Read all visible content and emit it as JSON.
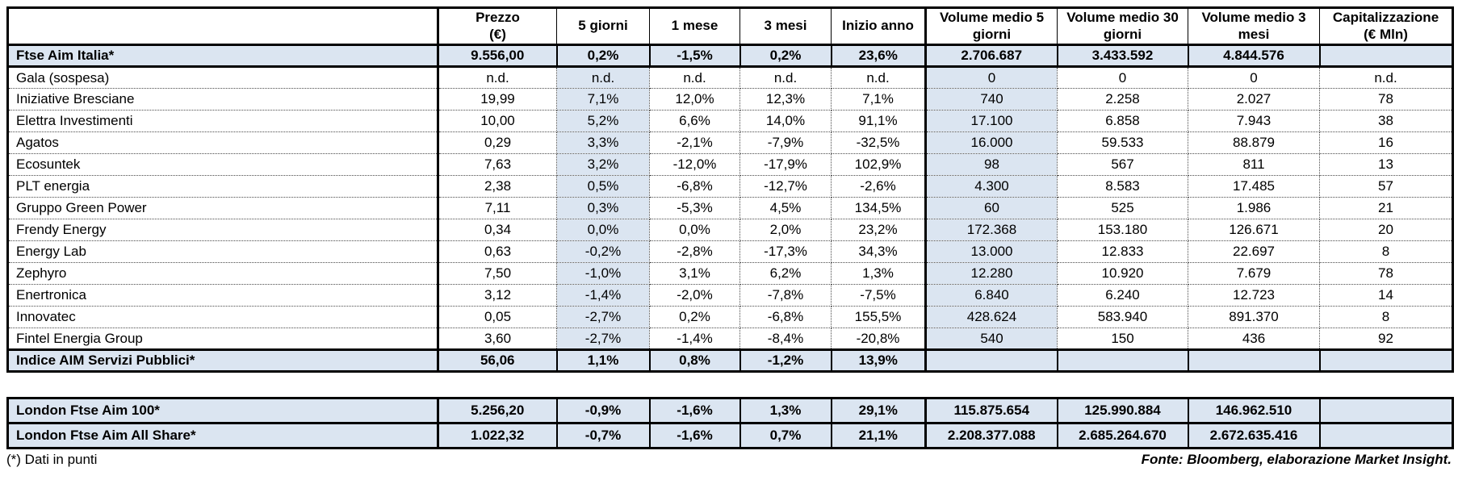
{
  "colors": {
    "highlight_blue": "#dbe5f1",
    "border_black": "#000000",
    "background": "#ffffff"
  },
  "chart_data": {
    "type": "table",
    "columns": [
      "",
      "Prezzo\n(€)",
      "5 giorni",
      "1 mese",
      "3 mesi",
      "Inizio anno",
      "Volume medio 5\ngiorni",
      "Volume medio 30\ngiorni",
      "Volume medio 3\nmesi",
      "Capitalizzazione\n(€ Mln)"
    ],
    "main_rows": [
      {
        "label": "Ftse Aim Italia*",
        "style": "index",
        "values": [
          "9.556,00",
          "0,2%",
          "-1,5%",
          "0,2%",
          "23,6%",
          "2.706.687",
          "3.433.592",
          "4.844.576",
          ""
        ]
      },
      {
        "label": "Gala (sospesa)",
        "style": "stock",
        "values": [
          "n.d.",
          "n.d.",
          "n.d.",
          "n.d.",
          "n.d.",
          "0",
          "0",
          "0",
          "n.d."
        ]
      },
      {
        "label": "Iniziative Bresciane",
        "style": "stock",
        "values": [
          "19,99",
          "7,1%",
          "12,0%",
          "12,3%",
          "7,1%",
          "740",
          "2.258",
          "2.027",
          "78"
        ]
      },
      {
        "label": "Elettra Investimenti",
        "style": "stock",
        "values": [
          "10,00",
          "5,2%",
          "6,6%",
          "14,0%",
          "91,1%",
          "17.100",
          "6.858",
          "7.943",
          "38"
        ]
      },
      {
        "label": "Agatos",
        "style": "stock",
        "values": [
          "0,29",
          "3,3%",
          "-2,1%",
          "-7,9%",
          "-32,5%",
          "16.000",
          "59.533",
          "88.879",
          "16"
        ]
      },
      {
        "label": "Ecosuntek",
        "style": "stock",
        "values": [
          "7,63",
          "3,2%",
          "-12,0%",
          "-17,9%",
          "102,9%",
          "98",
          "567",
          "811",
          "13"
        ]
      },
      {
        "label": "PLT energia",
        "style": "stock",
        "values": [
          "2,38",
          "0,5%",
          "-6,8%",
          "-12,7%",
          "-2,6%",
          "4.300",
          "8.583",
          "17.485",
          "57"
        ]
      },
      {
        "label": "Gruppo Green Power",
        "style": "stock",
        "values": [
          "7,11",
          "0,3%",
          "-5,3%",
          "4,5%",
          "134,5%",
          "60",
          "525",
          "1.986",
          "21"
        ]
      },
      {
        "label": "Frendy Energy",
        "style": "stock",
        "values": [
          "0,34",
          "0,0%",
          "0,0%",
          "2,0%",
          "23,2%",
          "172.368",
          "153.180",
          "126.671",
          "20"
        ]
      },
      {
        "label": "Energy Lab",
        "style": "stock",
        "values": [
          "0,63",
          "-0,2%",
          "-2,8%",
          "-17,3%",
          "34,3%",
          "13.000",
          "12.833",
          "22.697",
          "8"
        ]
      },
      {
        "label": "Zephyro",
        "style": "stock",
        "values": [
          "7,50",
          "-1,0%",
          "3,1%",
          "6,2%",
          "1,3%",
          "12.280",
          "10.920",
          "7.679",
          "78"
        ]
      },
      {
        "label": "Enertronica",
        "style": "stock",
        "values": [
          "3,12",
          "-1,4%",
          "-2,0%",
          "-7,8%",
          "-7,5%",
          "6.840",
          "6.240",
          "12.723",
          "14"
        ]
      },
      {
        "label": "Innovatec",
        "style": "stock",
        "values": [
          "0,05",
          "-2,7%",
          "0,2%",
          "-6,8%",
          "155,5%",
          "428.624",
          "583.940",
          "891.370",
          "8"
        ]
      },
      {
        "label": "Fintel Energia Group",
        "style": "stock",
        "values": [
          "3,60",
          "-2,7%",
          "-1,4%",
          "-8,4%",
          "-20,8%",
          "540",
          "150",
          "436",
          "92"
        ]
      },
      {
        "label": "Indice AIM Servizi Pubblici*",
        "style": "index",
        "values": [
          "56,06",
          "1,1%",
          "0,8%",
          "-1,2%",
          "13,9%",
          "",
          "",
          "",
          ""
        ]
      }
    ],
    "london_rows": [
      {
        "label": "London Ftse Aim 100*",
        "style": "index",
        "values": [
          "5.256,20",
          "-0,9%",
          "-1,6%",
          "1,3%",
          "29,1%",
          "115.875.654",
          "125.990.884",
          "146.962.510",
          ""
        ]
      },
      {
        "label": "London Ftse Aim All Share*",
        "style": "index",
        "values": [
          "1.022,32",
          "-0,7%",
          "-1,6%",
          "0,7%",
          "21,1%",
          "2.208.377.088",
          "2.685.264.670",
          "2.672.635.416",
          ""
        ]
      }
    ]
  },
  "footer": {
    "note": "(*) Dati in punti",
    "source": "Fonte: Bloomberg, elaborazione Market Insight."
  }
}
